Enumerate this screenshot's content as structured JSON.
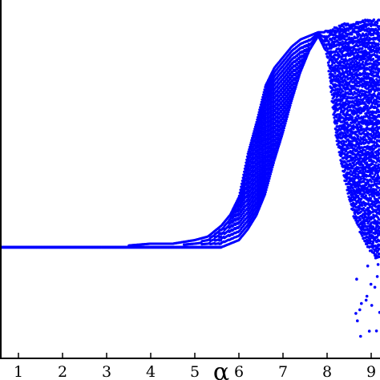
{
  "chart_data": {
    "type": "scatter",
    "title": "",
    "xlabel": "α",
    "ylabel": "",
    "xlim": [
      0.6,
      9.2
    ],
    "ylim": [
      0.0,
      1.0
    ],
    "x_ticks": [
      "1",
      "2",
      "3",
      "4",
      "5",
      "6",
      "7",
      "8",
      "9"
    ],
    "y_ticks": [],
    "grid": false,
    "legend": "none",
    "marker_color": "#0000ff",
    "series": [
      {
        "description_points": "dense bifurcation-style point cloud",
        "x": [
          0.6,
          1.0,
          2.0,
          3.0,
          4.0,
          4.5,
          5.0,
          5.3,
          5.6,
          5.8,
          6.0,
          6.2,
          6.4,
          6.6,
          6.8,
          7.0,
          7.2,
          7.4,
          7.6,
          7.8,
          8.0,
          8.2,
          8.4,
          8.6,
          8.8,
          9.0,
          9.2
        ],
        "y_lower": [
          0.31,
          0.31,
          0.31,
          0.31,
          0.31,
          0.31,
          0.31,
          0.31,
          0.31,
          0.32,
          0.33,
          0.36,
          0.4,
          0.46,
          0.55,
          0.63,
          0.72,
          0.8,
          0.86,
          0.9,
          0.85,
          0.62,
          0.5,
          0.4,
          0.34,
          0.3,
          0.28
        ],
        "y_upper": [
          0.31,
          0.31,
          0.31,
          0.31,
          0.32,
          0.32,
          0.33,
          0.34,
          0.37,
          0.4,
          0.45,
          0.57,
          0.66,
          0.76,
          0.81,
          0.84,
          0.87,
          0.89,
          0.9,
          0.91,
          0.91,
          0.92,
          0.93,
          0.93,
          0.94,
          0.94,
          0.94
        ]
      }
    ]
  }
}
